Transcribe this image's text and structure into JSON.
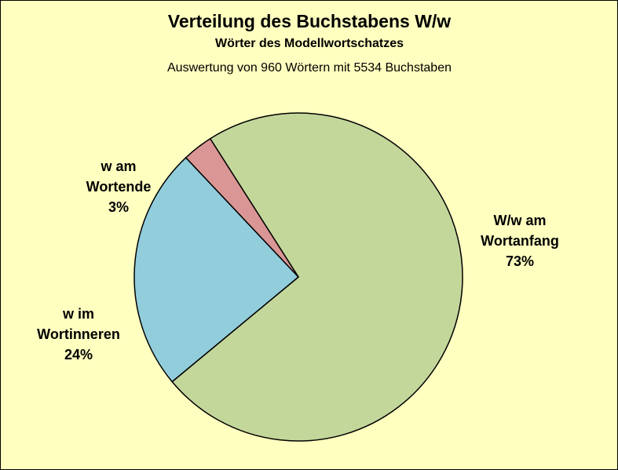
{
  "colors": {
    "background": "#FFFFC0",
    "wortanfang": "#C4D79B",
    "wortinneren": "#92CDDC",
    "wortende": "#DA9694",
    "border": "#000000"
  },
  "chart_data": {
    "type": "pie",
    "title": "Verteilung des Buchstabens W/w",
    "subtitle": "Wörter des Modellwortschatzes",
    "subtitle2": "Auswertung von 960 Wörtern mit 5534 Buchstaben",
    "legend": "none",
    "slices": [
      {
        "key": "wortanfang",
        "label_lines": [
          "W/w am",
          "Wortanfang"
        ],
        "percent_label": "73%",
        "value": 73
      },
      {
        "key": "wortinneren",
        "label_lines": [
          "w im",
          "Wortinneren"
        ],
        "percent_label": "24%",
        "value": 24
      },
      {
        "key": "wortende",
        "label_lines": [
          "w am",
          "Wortende"
        ],
        "percent_label": "3%",
        "value": 3
      }
    ]
  }
}
